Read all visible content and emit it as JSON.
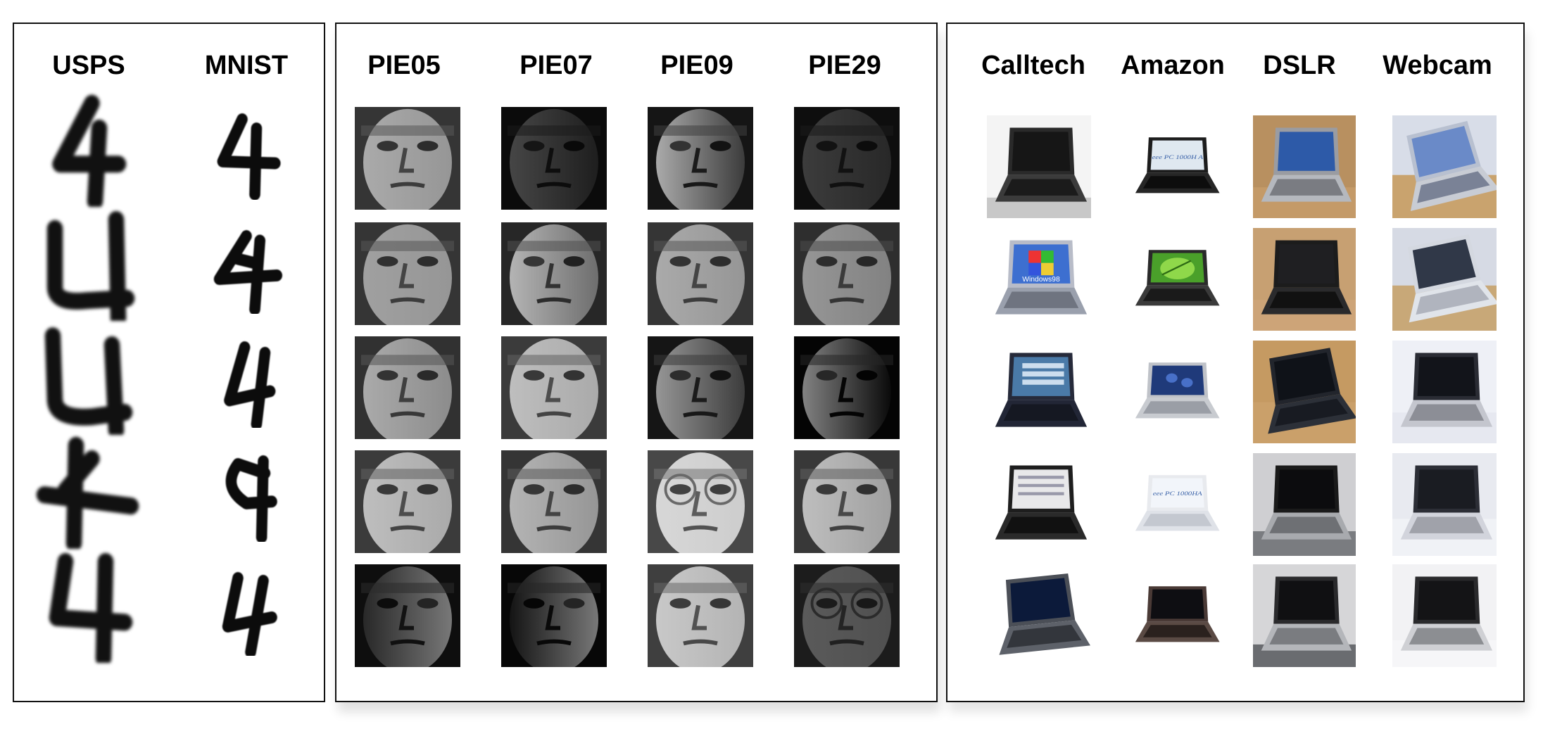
{
  "panels": [
    {
      "id": "digits",
      "columns": [
        "USPS",
        "MNIST"
      ],
      "rows": 5,
      "image_kind": "handwritten digit 4"
    },
    {
      "id": "faces",
      "columns": [
        "PIE05",
        "PIE07",
        "PIE09",
        "PIE29"
      ],
      "rows": 5,
      "image_kind": "grayscale face"
    },
    {
      "id": "office",
      "columns": [
        "Calltech",
        "Amazon",
        "DSLR",
        "Webcam"
      ],
      "rows": 5,
      "image_kind": "laptop photo"
    }
  ],
  "image_texts": {
    "windows_logo": "Windows98",
    "eee_pc_a": "eee PC 1000H A",
    "eee_pc_b": "eee PC 1000HA"
  }
}
